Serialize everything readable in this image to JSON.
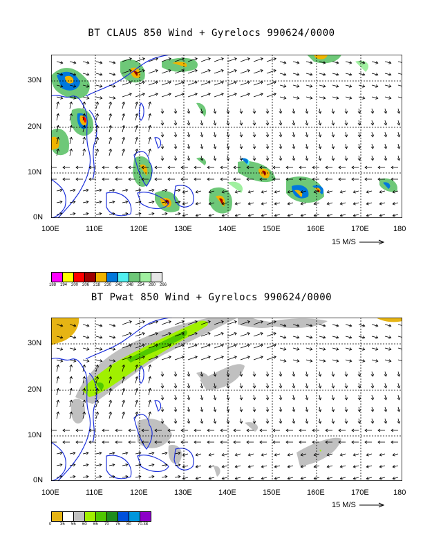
{
  "panels": [
    {
      "title": "BT CLAUS 850 Wind + Gyrelocs 990624/0000",
      "x_ticks": [
        "100E",
        "110E",
        "120E",
        "130E",
        "140E",
        "150E",
        "160E",
        "170E",
        "180"
      ],
      "y_ticks": [
        "30N",
        "20N",
        "10N",
        "0N"
      ],
      "ref_vector_label": "15 M/S",
      "legend": {
        "colors": [
          "#ff00ff",
          "#ffff00",
          "#ff0000",
          "#a00000",
          "#f0b400",
          "#0078dc",
          "#50f0f0",
          "#6ec878",
          "#a0f0a0",
          "#e6e6e6"
        ],
        "labels": [
          "188",
          "194",
          "200",
          "206",
          "218",
          "230",
          "242",
          "248",
          "254",
          "260",
          "266"
        ]
      }
    },
    {
      "title": "BT Pwat 850 Wind + Gyrelocs 990624/0000",
      "x_ticks": [
        "100E",
        "110E",
        "120E",
        "130E",
        "140E",
        "150E",
        "160E",
        "170E",
        "180"
      ],
      "y_ticks": [
        "30N",
        "20N",
        "10N",
        "0N"
      ],
      "ref_vector_label": "15 M/S",
      "legend": {
        "colors": [
          "#e6b414",
          "#ffffff",
          "#c0c0c0",
          "#a0f000",
          "#50c800",
          "#1e8c1e",
          "#0050dc",
          "#0096dc",
          "#8c00c8"
        ],
        "labels": [
          "0",
          "35",
          "55",
          "60",
          "65",
          "70",
          "75",
          "80",
          "70.38"
        ]
      }
    }
  ]
}
